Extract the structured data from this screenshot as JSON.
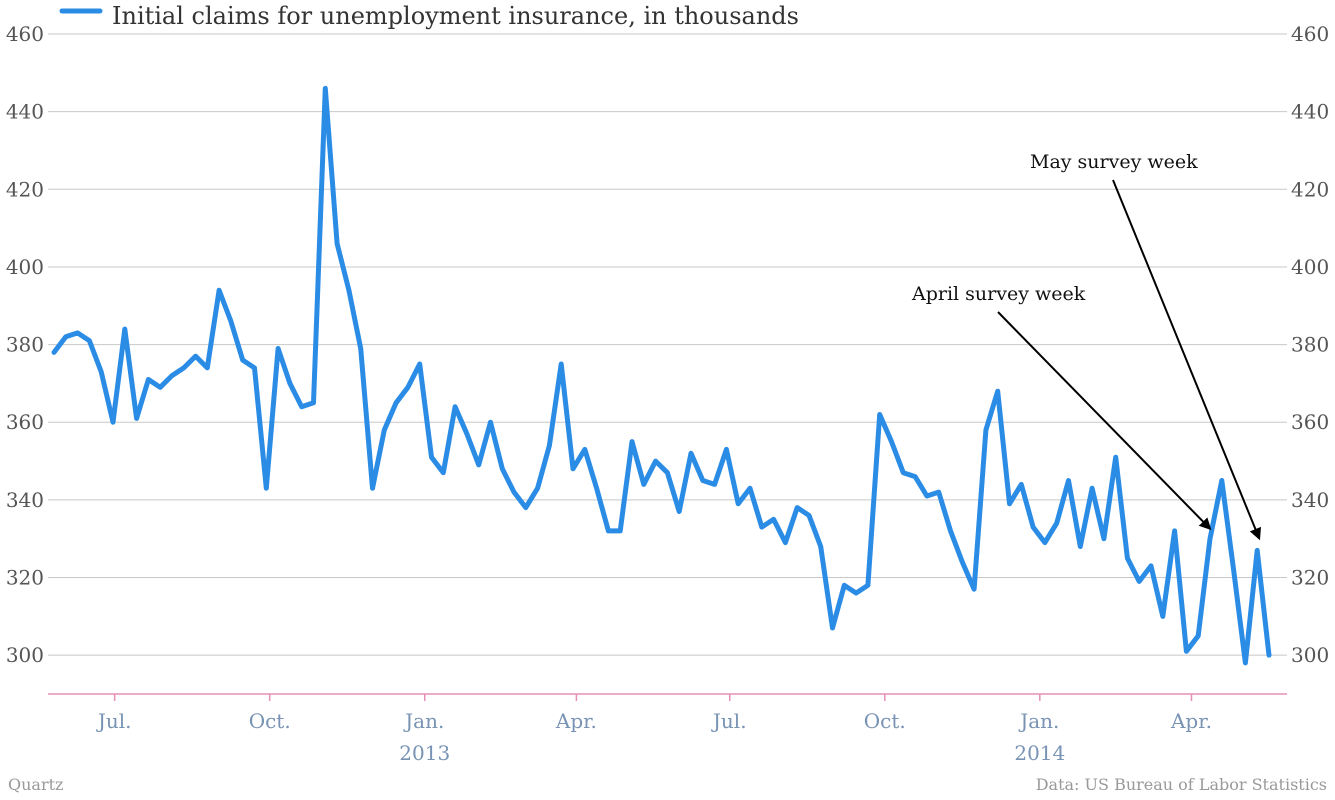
{
  "chart_data": {
    "type": "line",
    "title": "",
    "legend": {
      "label": "Initial claims for unemployment insurance, in thousands",
      "placement": "top-left",
      "color": "#2b8ce6"
    },
    "y_axis": {
      "range": [
        290,
        460
      ],
      "ticks": [
        300,
        320,
        340,
        360,
        380,
        400,
        420,
        440,
        460
      ],
      "left_and_right": true
    },
    "x_axis": {
      "range": [
        "2012-05-26",
        "2014-05-17"
      ],
      "ticks": [
        {
          "date": "2012-07-01",
          "label": "Jul.",
          "year_label": ""
        },
        {
          "date": "2012-10-01",
          "label": "Oct.",
          "year_label": ""
        },
        {
          "date": "2013-01-01",
          "label": "Jan.",
          "year_label": "2013"
        },
        {
          "date": "2013-04-01",
          "label": "Apr.",
          "year_label": ""
        },
        {
          "date": "2013-07-01",
          "label": "Jul.",
          "year_label": ""
        },
        {
          "date": "2013-10-01",
          "label": "Oct.",
          "year_label": ""
        },
        {
          "date": "2014-01-01",
          "label": "Jan.",
          "year_label": "2014"
        },
        {
          "date": "2014-04-01",
          "label": "Apr.",
          "year_label": ""
        }
      ]
    },
    "grid": true,
    "series": [
      {
        "name": "Initial claims for unemployment insurance, in thousands",
        "color": "#2b8ce6",
        "x": [
          "2012-05-26",
          "2012-06-02",
          "2012-06-09",
          "2012-06-16",
          "2012-06-23",
          "2012-06-30",
          "2012-07-07",
          "2012-07-14",
          "2012-07-21",
          "2012-07-28",
          "2012-08-04",
          "2012-08-11",
          "2012-08-18",
          "2012-08-25",
          "2012-09-01",
          "2012-09-08",
          "2012-09-15",
          "2012-09-22",
          "2012-09-29",
          "2012-10-06",
          "2012-10-13",
          "2012-10-20",
          "2012-10-27",
          "2012-11-03",
          "2012-11-10",
          "2012-11-17",
          "2012-11-24",
          "2012-12-01",
          "2012-12-08",
          "2012-12-15",
          "2012-12-22",
          "2012-12-29",
          "2013-01-05",
          "2013-01-12",
          "2013-01-19",
          "2013-01-26",
          "2013-02-02",
          "2013-02-09",
          "2013-02-16",
          "2013-02-23",
          "2013-03-02",
          "2013-03-09",
          "2013-03-16",
          "2013-03-23",
          "2013-03-30",
          "2013-04-06",
          "2013-04-13",
          "2013-04-20",
          "2013-04-27",
          "2013-05-04",
          "2013-05-11",
          "2013-05-18",
          "2013-05-25",
          "2013-06-01",
          "2013-06-08",
          "2013-06-15",
          "2013-06-22",
          "2013-06-29",
          "2013-07-06",
          "2013-07-13",
          "2013-07-20",
          "2013-07-27",
          "2013-08-03",
          "2013-08-10",
          "2013-08-17",
          "2013-08-24",
          "2013-08-31",
          "2013-09-07",
          "2013-09-14",
          "2013-09-21",
          "2013-09-28",
          "2013-10-05",
          "2013-10-12",
          "2013-10-19",
          "2013-10-26",
          "2013-11-02",
          "2013-11-09",
          "2013-11-16",
          "2013-11-23",
          "2013-11-30",
          "2013-12-07",
          "2013-12-14",
          "2013-12-21",
          "2013-12-28",
          "2014-01-04",
          "2014-01-11",
          "2014-01-18",
          "2014-01-25",
          "2014-02-01",
          "2014-02-08",
          "2014-02-15",
          "2014-02-22",
          "2014-03-01",
          "2014-03-08",
          "2014-03-15",
          "2014-03-22",
          "2014-03-29",
          "2014-04-05",
          "2014-04-12",
          "2014-04-19",
          "2014-04-26",
          "2014-05-03",
          "2014-05-10",
          "2014-05-17"
        ],
        "values": [
          378,
          382,
          383,
          381,
          373,
          360,
          384,
          361,
          371,
          369,
          372,
          374,
          377,
          374,
          394,
          386,
          376,
          374,
          343,
          379,
          370,
          364,
          365,
          446,
          406,
          394,
          379,
          343,
          358,
          365,
          369,
          375,
          351,
          347,
          364,
          357,
          349,
          360,
          348,
          342,
          338,
          343,
          354,
          375,
          348,
          353,
          343,
          332,
          332,
          355,
          344,
          350,
          347,
          337,
          352,
          345,
          344,
          353,
          339,
          343,
          333,
          335,
          329,
          338,
          336,
          328,
          307,
          318,
          316,
          318,
          362,
          355,
          347,
          346,
          341,
          342,
          332,
          324,
          317,
          358,
          368,
          339,
          344,
          333,
          329,
          334,
          345,
          328,
          343,
          330,
          351,
          325,
          319,
          323,
          310,
          332,
          301,
          305,
          330,
          345,
          322,
          298,
          327,
          300
        ]
      }
    ],
    "annotations": [
      {
        "text": "April survey week",
        "points_to": "2014-04-12"
      },
      {
        "text": "May survey week",
        "points_to": "2014-05-10"
      }
    ]
  },
  "footer": {
    "source_left": "Quartz",
    "source_right": "Data: US Bureau of Labor Statistics"
  }
}
